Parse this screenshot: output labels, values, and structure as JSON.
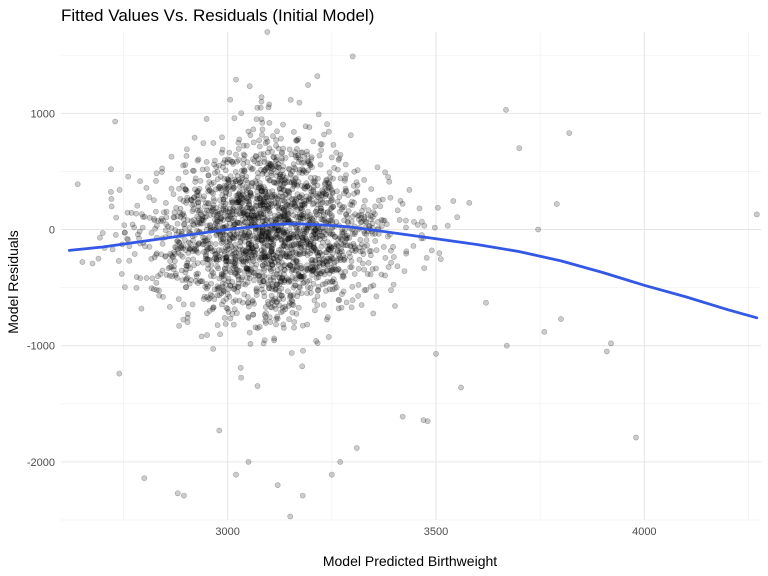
{
  "chart_data": {
    "type": "scatter",
    "title": "Fitted Values Vs. Residuals (Initial Model)",
    "xlabel": "Model Predicted Birthweight",
    "ylabel": "Model Residuals",
    "xlim": [
      2600,
      4280
    ],
    "ylim": [
      -2500,
      1700
    ],
    "x_ticks": [
      3000,
      3500,
      4000
    ],
    "x_minor_ticks": [
      2750,
      3250,
      3750,
      4250
    ],
    "y_ticks": [
      -2000,
      -1000,
      0,
      1000
    ],
    "y_minor_ticks": [
      -2500,
      -1500,
      -500,
      500,
      1500
    ],
    "x_tick_labels": [
      "3000",
      "3500",
      "4000"
    ],
    "y_tick_labels": [
      "-2000",
      "-1000",
      "0",
      "1000"
    ],
    "grid": true,
    "legend": "none",
    "point_color": "#000000",
    "point_alpha": 0.2,
    "smooth_color": "#3358e6",
    "cloud_center": {
      "x": 3100,
      "y": 0
    },
    "cloud_spread": {
      "x": 140,
      "y": 420
    },
    "cloud_count": 2300,
    "outlier_points": [
      {
        "x": 3095,
        "y": 1700
      },
      {
        "x": 3300,
        "y": 1490
      },
      {
        "x": 3020,
        "y": 1290
      },
      {
        "x": 3215,
        "y": 1320
      },
      {
        "x": 3668,
        "y": 1030
      },
      {
        "x": 3820,
        "y": 830
      },
      {
        "x": 2640,
        "y": 390
      },
      {
        "x": 4270,
        "y": 130
      },
      {
        "x": 2720,
        "y": 520
      },
      {
        "x": 2730,
        "y": 930
      },
      {
        "x": 3700,
        "y": 700
      },
      {
        "x": 3790,
        "y": 220
      },
      {
        "x": 3745,
        "y": 0
      },
      {
        "x": 3800,
        "y": -770
      },
      {
        "x": 3760,
        "y": -880
      },
      {
        "x": 3920,
        "y": -980
      },
      {
        "x": 3910,
        "y": -1050
      },
      {
        "x": 3980,
        "y": -1790
      },
      {
        "x": 3560,
        "y": -1360
      },
      {
        "x": 3470,
        "y": -1640
      },
      {
        "x": 3480,
        "y": -1650
      },
      {
        "x": 3420,
        "y": -1610
      },
      {
        "x": 3310,
        "y": -1880
      },
      {
        "x": 3270,
        "y": -2000
      },
      {
        "x": 3250,
        "y": -2110
      },
      {
        "x": 3180,
        "y": -2290
      },
      {
        "x": 3150,
        "y": -2470
      },
      {
        "x": 3120,
        "y": -2200
      },
      {
        "x": 3050,
        "y": -2000
      },
      {
        "x": 3020,
        "y": -2110
      },
      {
        "x": 2880,
        "y": -2270
      },
      {
        "x": 2895,
        "y": -2290
      },
      {
        "x": 2800,
        "y": -2140
      },
      {
        "x": 2740,
        "y": -1240
      },
      {
        "x": 2690,
        "y": -250
      },
      {
        "x": 2700,
        "y": -30
      },
      {
        "x": 3500,
        "y": -1070
      },
      {
        "x": 3670,
        "y": -1000
      },
      {
        "x": 3620,
        "y": -630
      },
      {
        "x": 3580,
        "y": 230
      },
      {
        "x": 2980,
        "y": -1730
      }
    ],
    "smooth_line": {
      "x": [
        2620,
        2700,
        2800,
        2900,
        3000,
        3100,
        3150,
        3200,
        3250,
        3300,
        3400,
        3500,
        3600,
        3700,
        3800,
        3900,
        4000,
        4100,
        4200,
        4270
      ],
      "y": [
        -180,
        -150,
        -100,
        -50,
        0,
        40,
        50,
        45,
        35,
        20,
        -30,
        -80,
        -130,
        -190,
        -270,
        -370,
        -480,
        -580,
        -690,
        -760
      ]
    }
  }
}
